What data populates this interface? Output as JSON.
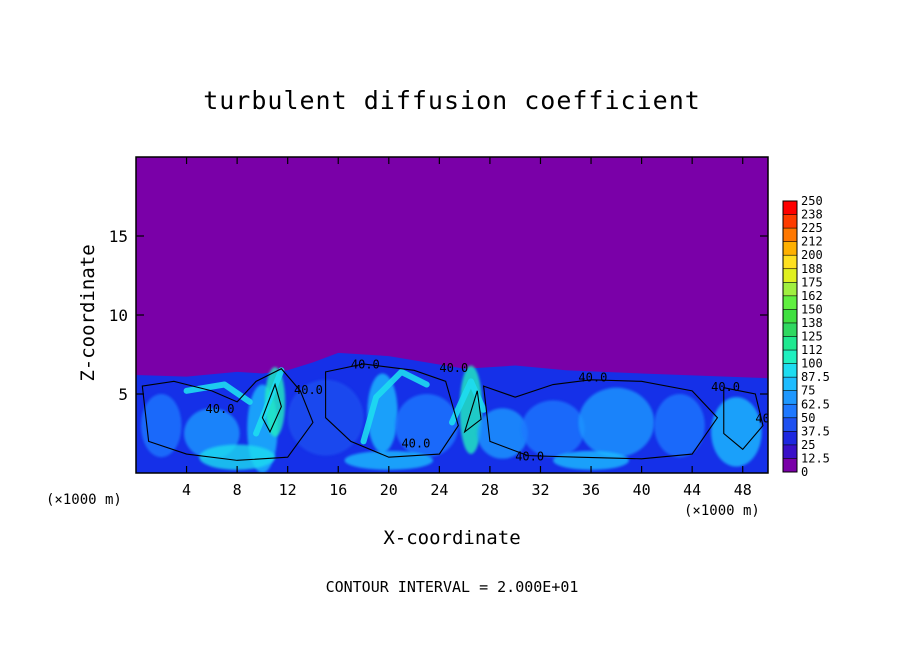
{
  "chart_data": {
    "type": "contour",
    "title": "turbulent diffusion coefficient",
    "xlabel": "X-coordinate",
    "ylabel": "Z-coordinate",
    "x_unit": "(×1000 m)",
    "y_unit": "(×1000 m)",
    "xlim": [
      0,
      50
    ],
    "ylim": [
      0,
      20
    ],
    "x_ticks": [
      4,
      8,
      12,
      16,
      20,
      24,
      28,
      32,
      36,
      40,
      44,
      48
    ],
    "y_ticks": [
      5,
      10,
      15
    ],
    "footer": "CONTOUR INTERVAL = 2.000E+01",
    "contour_line_labels": [
      "40.0",
      "40.0",
      "40.0",
      "40.0",
      "40.0",
      "40.0",
      "40.0",
      "40.0",
      "40.0"
    ],
    "mixed_layer_top_km": [
      6.2,
      6.1,
      6.4,
      6.3,
      6.5,
      7.0,
      7.6,
      7.4,
      6.6,
      6.8,
      6.5,
      6.3,
      6.0
    ],
    "mixed_layer_top_x": [
      0,
      4,
      8,
      10,
      12,
      14,
      16,
      20,
      26,
      30,
      34,
      40,
      50
    ],
    "colorbar": {
      "levels": [
        "0",
        "12.5",
        "25",
        "37.5",
        "50",
        "62.5",
        "75",
        "87.5",
        "100",
        "112",
        "125",
        "138",
        "150",
        "162",
        "175",
        "188",
        "200",
        "212",
        "225",
        "238",
        "250"
      ],
      "colors": [
        "#7a00a8",
        "#3a10c8",
        "#1e28e0",
        "#1e50f0",
        "#1e78ff",
        "#1e98ff",
        "#1ebcff",
        "#1edcf0",
        "#20f0c0",
        "#20e890",
        "#30d860",
        "#40e040",
        "#60f040",
        "#a0f040",
        "#e0f020",
        "#ffe020",
        "#ffb000",
        "#ff7800",
        "#ff3c00",
        "#ff0000",
        "#f05050",
        "#f08888"
      ]
    },
    "colors": {
      "background": "#7a00a8",
      "mixed_layer_base": "#1530e8",
      "turbulent_high": "#1edcf0"
    }
  }
}
